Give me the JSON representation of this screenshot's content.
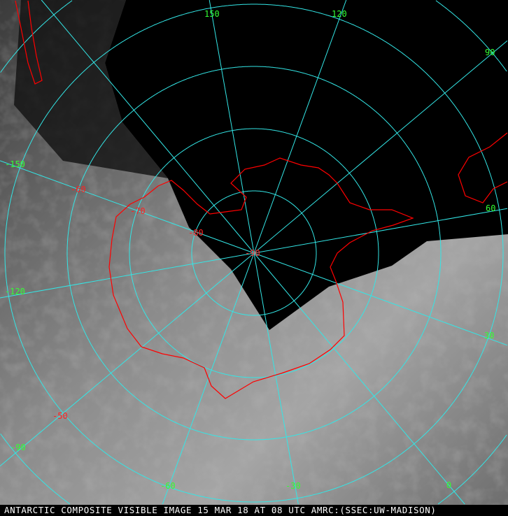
{
  "caption": "ANTARCTIC COMPOSITE VISIBLE IMAGE 15 MAR 18 AT 08 UTC AMRC:(SSEC:UW-MADISON)",
  "graticule_color": "#33e6e6",
  "coastline_color": "#ff0000",
  "longitude_labels": [
    "150",
    "120",
    "90",
    "60",
    "30",
    "0",
    "-30",
    "-60",
    "-90",
    "-120",
    "-150"
  ],
  "latitude_labels": [
    "-90",
    "-80",
    "-70",
    "-60",
    "-50"
  ],
  "meridians_deg": [
    0,
    30,
    60,
    90,
    120,
    150,
    180,
    -150,
    -120,
    -90,
    -60,
    -30
  ],
  "parallels_deg": [
    -80,
    -70,
    -60,
    -50,
    -40,
    -30
  ]
}
